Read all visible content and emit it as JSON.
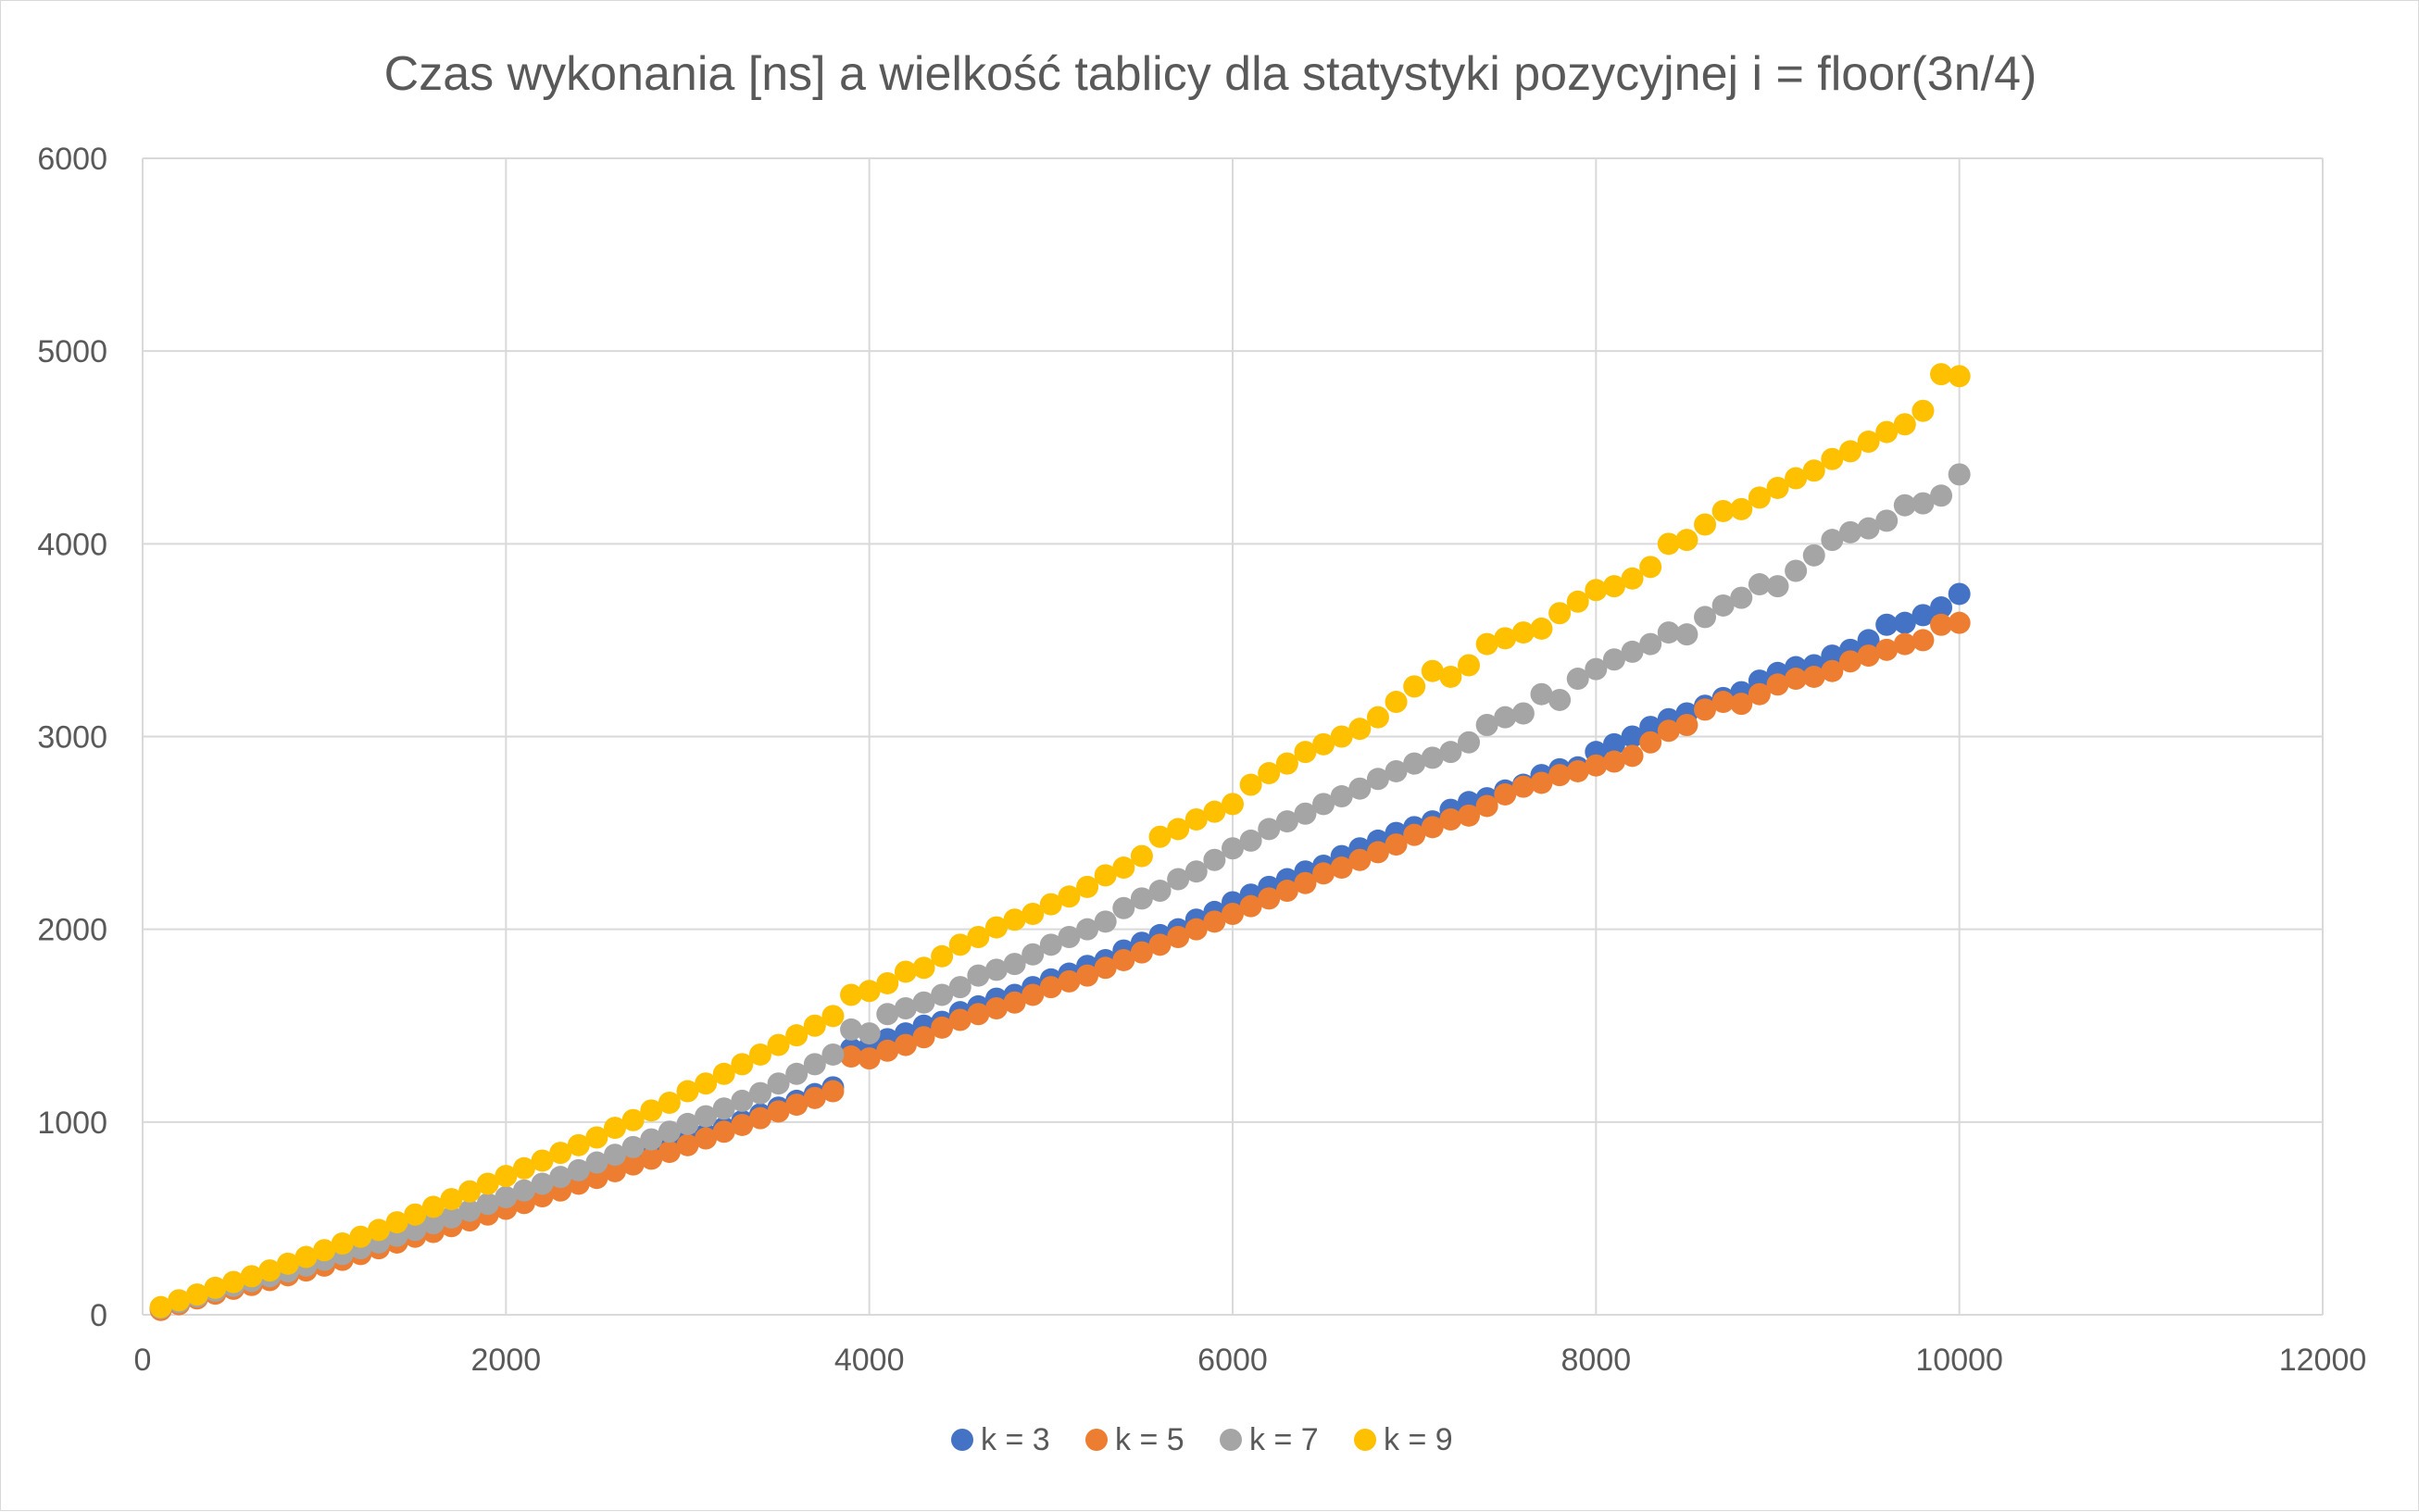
{
  "chart_data": {
    "type": "scatter",
    "title": "Czas wykonania [ns] a wielkość tablicy dla statystyki pozycyjnej i = floor(3n/4)",
    "xlabel": "",
    "ylabel": "",
    "xlim": [
      0,
      12000
    ],
    "ylim": [
      0,
      6000
    ],
    "x_ticks": [
      0,
      2000,
      4000,
      6000,
      8000,
      10000,
      12000
    ],
    "y_ticks": [
      0,
      1000,
      2000,
      3000,
      4000,
      5000,
      6000
    ],
    "x_tick_labels": [
      "0",
      "2000",
      "4000",
      "6000",
      "8000",
      "10000",
      "12000"
    ],
    "y_tick_labels": [
      "0",
      "1000",
      "2000",
      "3000",
      "4000",
      "5000",
      "6000"
    ],
    "grid": true,
    "legend_position": "bottom",
    "x": [
      100,
      200,
      300,
      400,
      500,
      600,
      700,
      800,
      900,
      1000,
      1100,
      1200,
      1300,
      1400,
      1500,
      1600,
      1700,
      1800,
      1900,
      2000,
      2100,
      2200,
      2300,
      2400,
      2500,
      2600,
      2700,
      2800,
      2900,
      3000,
      3100,
      3200,
      3300,
      3400,
      3500,
      3600,
      3700,
      3800,
      3900,
      4000,
      4100,
      4200,
      4300,
      4400,
      4500,
      4600,
      4700,
      4800,
      4900,
      5000,
      5100,
      5200,
      5300,
      5400,
      5500,
      5600,
      5700,
      5800,
      5900,
      6000,
      6100,
      6200,
      6300,
      6400,
      6500,
      6600,
      6700,
      6800,
      6900,
      7000,
      7100,
      7200,
      7300,
      7400,
      7500,
      7600,
      7700,
      7800,
      7900,
      8000,
      8100,
      8200,
      8300,
      8400,
      8500,
      8600,
      8700,
      8800,
      8900,
      9000,
      9100,
      9200,
      9300,
      9400,
      9500,
      9600,
      9700,
      9800,
      9900,
      10000
    ],
    "series": [
      {
        "name": "k = 3",
        "color": "#4472c4",
        "values": [
          30,
          60,
          90,
          120,
          140,
          160,
          185,
          210,
          235,
          265,
          295,
          325,
          355,
          385,
          415,
          445,
          475,
          505,
          535,
          565,
          600,
          635,
          665,
          700,
          730,
          765,
          800,
          830,
          865,
          900,
          935,
          970,
          1005,
          1040,
          1075,
          1110,
          1145,
          1180,
          1380,
          1390,
          1430,
          1460,
          1500,
          1520,
          1570,
          1600,
          1640,
          1660,
          1700,
          1740,
          1770,
          1810,
          1840,
          1890,
          1930,
          1970,
          2000,
          2050,
          2090,
          2140,
          2180,
          2220,
          2260,
          2300,
          2330,
          2380,
          2420,
          2460,
          2500,
          2530,
          2560,
          2620,
          2660,
          2680,
          2720,
          2750,
          2800,
          2830,
          2840,
          2920,
          2960,
          3000,
          3050,
          3090,
          3120,
          3160,
          3200,
          3230,
          3290,
          3330,
          3360,
          3370,
          3420,
          3450,
          3500,
          3580,
          3590,
          3630,
          3670,
          3740
        ]
      },
      {
        "name": "k = 5",
        "color": "#ed7d31",
        "values": [
          25,
          55,
          85,
          110,
          135,
          155,
          180,
          205,
          230,
          255,
          285,
          315,
          345,
          375,
          405,
          430,
          460,
          490,
          520,
          550,
          580,
          615,
          645,
          680,
          710,
          745,
          780,
          810,
          845,
          880,
          915,
          950,
          985,
          1020,
          1055,
          1090,
          1125,
          1160,
          1340,
          1330,
          1370,
          1400,
          1440,
          1490,
          1530,
          1560,
          1590,
          1620,
          1660,
          1700,
          1730,
          1760,
          1800,
          1840,
          1880,
          1920,
          1960,
          2000,
          2040,
          2080,
          2120,
          2160,
          2200,
          2240,
          2290,
          2320,
          2360,
          2400,
          2440,
          2490,
          2530,
          2570,
          2590,
          2640,
          2700,
          2740,
          2760,
          2800,
          2820,
          2850,
          2870,
          2900,
          2970,
          3030,
          3060,
          3140,
          3180,
          3170,
          3220,
          3270,
          3300,
          3310,
          3340,
          3390,
          3420,
          3450,
          3480,
          3500,
          3580,
          3590
        ]
      },
      {
        "name": "k = 7",
        "color": "#a5a5a5",
        "values": [
          35,
          65,
          95,
          125,
          150,
          175,
          200,
          225,
          255,
          285,
          315,
          345,
          375,
          410,
          440,
          475,
          505,
          540,
          575,
          610,
          645,
          680,
          715,
          750,
          790,
          830,
          870,
          910,
          950,
          990,
          1030,
          1070,
          1110,
          1150,
          1200,
          1250,
          1300,
          1350,
          1480,
          1460,
          1560,
          1590,
          1620,
          1660,
          1700,
          1760,
          1790,
          1820,
          1870,
          1920,
          1960,
          2000,
          2040,
          2110,
          2160,
          2200,
          2260,
          2300,
          2360,
          2420,
          2460,
          2520,
          2560,
          2600,
          2650,
          2690,
          2730,
          2780,
          2820,
          2860,
          2890,
          2920,
          2970,
          3060,
          3100,
          3120,
          3220,
          3190,
          3300,
          3350,
          3400,
          3440,
          3480,
          3540,
          3530,
          3620,
          3680,
          3720,
          3790,
          3780,
          3860,
          3940,
          4020,
          4060,
          4080,
          4120,
          4200,
          4210,
          4250,
          4360
        ]
      },
      {
        "name": "k = 9",
        "color": "#ffc000",
        "values": [
          40,
          75,
          105,
          140,
          170,
          200,
          230,
          265,
          300,
          335,
          370,
          405,
          440,
          480,
          520,
          560,
          600,
          640,
          680,
          720,
          760,
          800,
          840,
          880,
          920,
          970,
          1010,
          1060,
          1100,
          1160,
          1200,
          1250,
          1300,
          1350,
          1400,
          1450,
          1500,
          1550,
          1660,
          1680,
          1720,
          1780,
          1800,
          1860,
          1920,
          1960,
          2010,
          2050,
          2080,
          2130,
          2170,
          2220,
          2280,
          2320,
          2380,
          2480,
          2520,
          2570,
          2610,
          2650,
          2750,
          2810,
          2860,
          2920,
          2960,
          3000,
          3040,
          3100,
          3180,
          3260,
          3340,
          3310,
          3370,
          3480,
          3510,
          3540,
          3560,
          3640,
          3700,
          3760,
          3780,
          3820,
          3880,
          4000,
          4020,
          4100,
          4170,
          4180,
          4240,
          4290,
          4340,
          4380,
          4440,
          4480,
          4530,
          4580,
          4620,
          4690,
          4880,
          4870
        ]
      }
    ]
  }
}
